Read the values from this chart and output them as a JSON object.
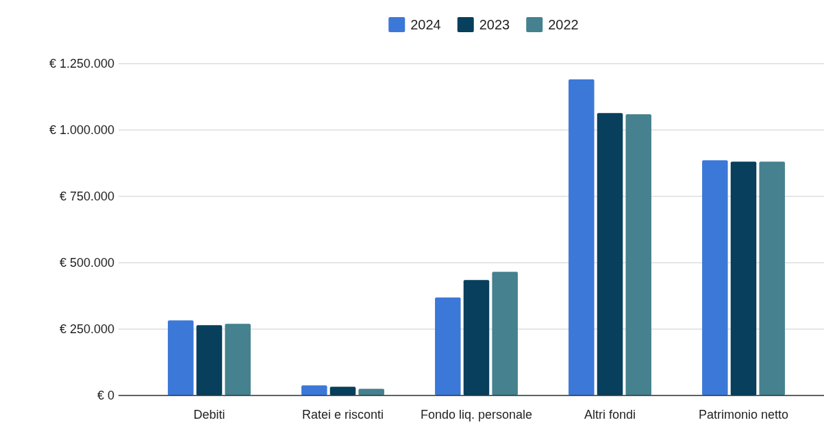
{
  "chart_data": {
    "type": "bar",
    "categories": [
      "Debiti",
      "Ratei e risconti",
      "Fondo liq. personale",
      "Altri fondi",
      "Patrimonio netto"
    ],
    "series": [
      {
        "name": "2024",
        "color": "#3c78d8",
        "values": [
          283000,
          38000,
          369000,
          1191000,
          886000
        ]
      },
      {
        "name": "2023",
        "color": "#073f5c",
        "values": [
          265000,
          33000,
          435000,
          1064000,
          881000
        ]
      },
      {
        "name": "2022",
        "color": "#45818e",
        "values": [
          270000,
          25000,
          466000,
          1059000,
          881000
        ]
      }
    ],
    "ylim": [
      0,
      1250000
    ],
    "yticks": [
      {
        "value": 0,
        "label": "€ 0"
      },
      {
        "value": 250000,
        "label": "€ 250.000"
      },
      {
        "value": 500000,
        "label": "€ 500.000"
      },
      {
        "value": 750000,
        "label": "€ 750.000"
      },
      {
        "value": 1000000,
        "label": "€ 1.000.000"
      },
      {
        "value": 1250000,
        "label": "€ 1.250.000"
      }
    ],
    "grid": "y",
    "legend": "top"
  }
}
